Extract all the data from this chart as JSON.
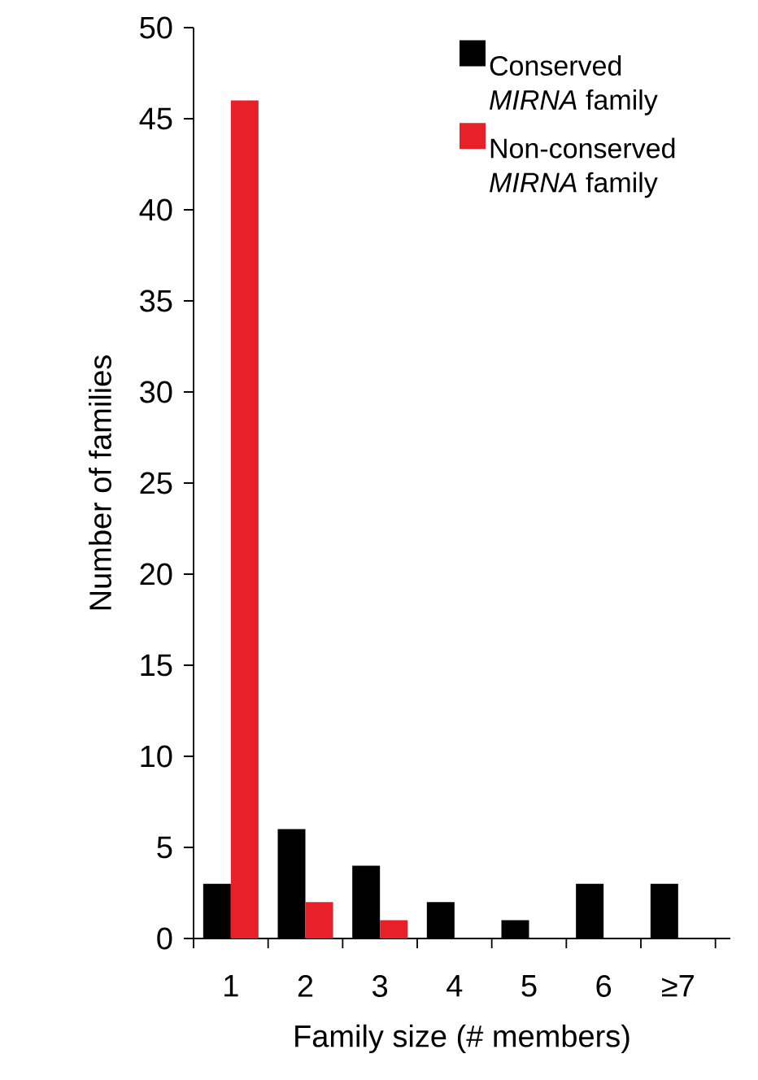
{
  "chart_data": {
    "type": "bar",
    "xlabel": "Family size (# members)",
    "ylabel": "Number of families",
    "categories": [
      "1",
      "2",
      "3",
      "4",
      "5",
      "6",
      "≥7"
    ],
    "series": [
      {
        "name": "Conserved *MIRNA* family",
        "color": "#000000",
        "values": [
          3,
          6,
          4,
          2,
          1,
          3,
          3
        ]
      },
      {
        "name": "Non-conserved *MIRNA* family",
        "color": "#e8202a",
        "values": [
          46,
          2,
          1,
          0,
          0,
          0,
          0
        ]
      }
    ],
    "ylim": [
      0,
      50
    ],
    "yticks": [
      0,
      5,
      10,
      15,
      20,
      25,
      30,
      35,
      40,
      45,
      50
    ],
    "grid": false,
    "legend": "top right"
  }
}
